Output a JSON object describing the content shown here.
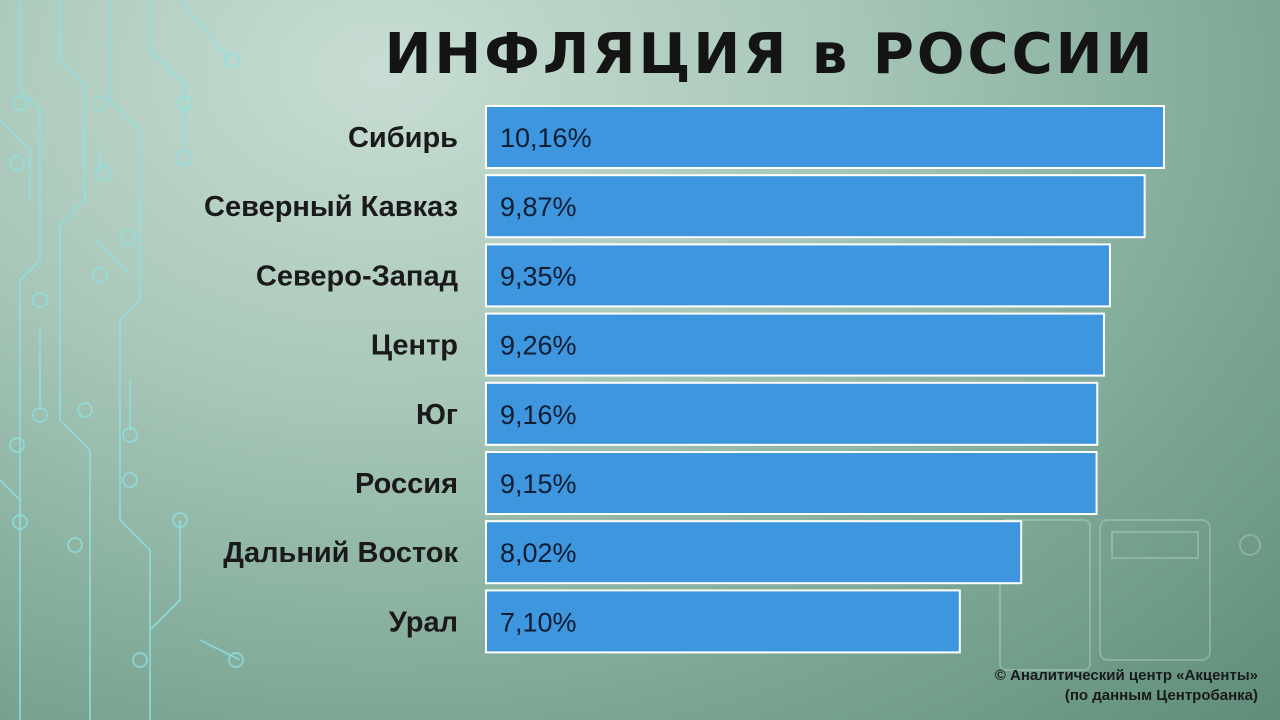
{
  "title": "ИНФЛЯЦИЯ в РОССИИ",
  "footer": {
    "line1": "©  Аналитический центр «Акценты»",
    "line2": "(по данным Центробанка)"
  },
  "colors": {
    "bar": "#3d96de",
    "bar_border": "#ffffff",
    "label_text": "#1a1a1a",
    "value_text": "#0d1d33"
  },
  "chart_data": {
    "type": "bar",
    "orientation": "horizontal",
    "categories": [
      "Сибирь",
      "Северный Кавказ",
      "Северо-Запад",
      "Центр",
      "Юг",
      "Россия",
      "Дальний Восток",
      "Урал"
    ],
    "values": [
      10.16,
      9.87,
      9.35,
      9.26,
      9.16,
      9.15,
      8.02,
      7.1
    ],
    "value_labels": [
      "10,16%",
      "9,87%",
      "9,35%",
      "9,26%",
      "9,16%",
      "9,15%",
      "8,02%",
      "7,10%"
    ],
    "xlim": [
      0,
      10.16
    ],
    "grid": false,
    "legend": "none"
  }
}
